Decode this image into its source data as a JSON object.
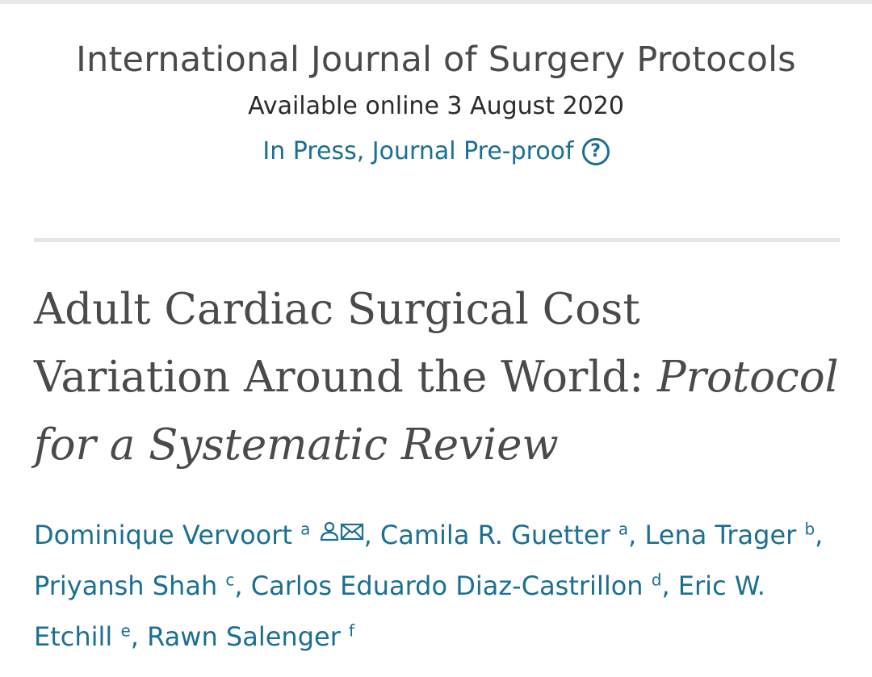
{
  "journal": {
    "name": "International Journal of Surgery Protocols",
    "available_online": "Available online 3 August 2020",
    "status": "In Press, Journal Pre-proof"
  },
  "article": {
    "title_main": "Adult Cardiac Surgical Cost Variation Around the World: ",
    "title_italic": "Protocol for a Systematic Review"
  },
  "authors": [
    {
      "name": "Dominique Vervoort",
      "aff": "a",
      "icons": [
        "person-icon",
        "mail-icon"
      ]
    },
    {
      "name": "Camila R. Guetter",
      "aff": "a"
    },
    {
      "name": "Lena Trager",
      "aff": "b"
    },
    {
      "name": "Priyansh Shah",
      "aff": "c"
    },
    {
      "name": "Carlos Eduardo Diaz-Castrillon",
      "aff": "d"
    },
    {
      "name": "Eric W. Etchill",
      "aff": "e"
    },
    {
      "name": "Rawn Salenger",
      "aff": "f"
    }
  ],
  "colors": {
    "link": "#1a6f92",
    "title": "#4a4a4a",
    "divider": "#e6e6e6"
  }
}
